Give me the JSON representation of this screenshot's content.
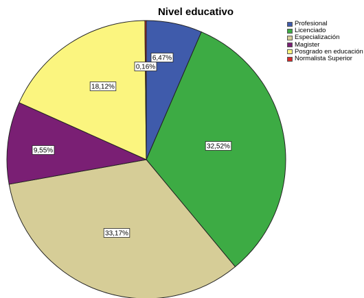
{
  "chart_data": {
    "type": "pie",
    "title": "Nivel educativo",
    "slices": [
      {
        "label": "Profesional",
        "value": 6.47,
        "display": "6,47%",
        "color": "#3f5bab"
      },
      {
        "label": "Licenciado",
        "value": 32.52,
        "display": "32,52%",
        "color": "#3dab44"
      },
      {
        "label": "Especialización",
        "value": 33.17,
        "display": "33,17%",
        "color": "#d6cd97"
      },
      {
        "label": "Magister",
        "value": 9.55,
        "display": "9,55%",
        "color": "#7a1f74"
      },
      {
        "label": "Posgrado en educación",
        "value": 18.12,
        "display": "18,12%",
        "color": "#fbf57f"
      },
      {
        "label": "Normalista Superior",
        "value": 0.16,
        "display": "0,16%",
        "color": "#d62a2a"
      }
    ],
    "start_angle": "12 o'clock",
    "direction": "clockwise",
    "legend_position": "top-right"
  }
}
